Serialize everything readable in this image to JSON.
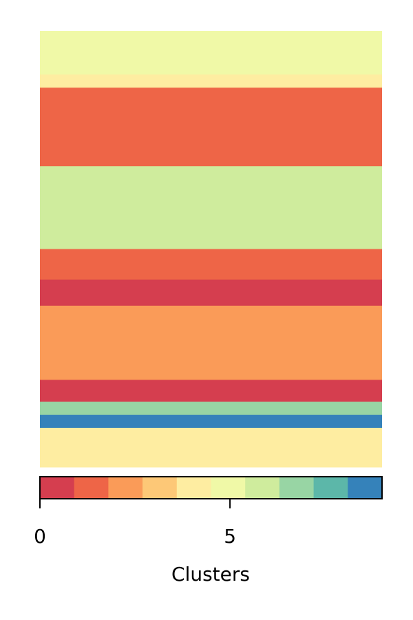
{
  "chart_data": {
    "type": "heatmap",
    "title": "",
    "xlabel": "",
    "ylabel": "",
    "colorbar": {
      "label": "Clusters",
      "ticks": [
        0,
        5
      ],
      "tick_labels": [
        "0",
        "5"
      ],
      "range": [
        0,
        9
      ],
      "orientation": "horizontal",
      "colors": [
        "#d53e4f",
        "#ee6547",
        "#fa9b58",
        "#fdc877",
        "#feeda1",
        "#f0f9a7",
        "#cfec9d",
        "#98d5a4",
        "#5cb7a9",
        "#3582ba"
      ]
    },
    "axes": {
      "x_ticks_visible": false,
      "y_ticks_visible": false,
      "frame_visible": false
    },
    "bands": [
      {
        "from": 0.0,
        "to": 0.1,
        "cluster": 5
      },
      {
        "from": 0.1,
        "to": 0.13,
        "cluster": 4
      },
      {
        "from": 0.13,
        "to": 0.31,
        "cluster": 1
      },
      {
        "from": 0.31,
        "to": 0.5,
        "cluster": 6
      },
      {
        "from": 0.5,
        "to": 0.57,
        "cluster": 1
      },
      {
        "from": 0.57,
        "to": 0.63,
        "cluster": 0
      },
      {
        "from": 0.63,
        "to": 0.8,
        "cluster": 2
      },
      {
        "from": 0.8,
        "to": 0.85,
        "cluster": 0
      },
      {
        "from": 0.85,
        "to": 0.88,
        "cluster": 7
      },
      {
        "from": 0.88,
        "to": 0.91,
        "cluster": 9
      },
      {
        "from": 0.91,
        "to": 1.0,
        "cluster": 4
      }
    ]
  }
}
